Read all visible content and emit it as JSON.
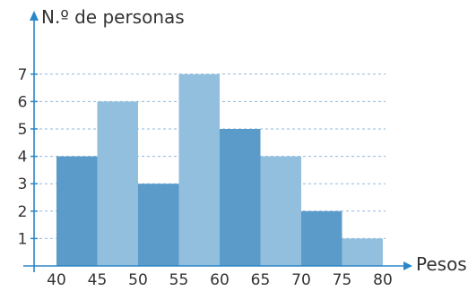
{
  "chart_data": {
    "type": "histogram",
    "title": "",
    "xlabel": "Pesos",
    "ylabel": "N.º de personas",
    "bin_edges": [
      40,
      45,
      50,
      55,
      60,
      65,
      70,
      75,
      80
    ],
    "x_tick_labels": [
      "40",
      "45",
      "50",
      "55",
      "60",
      "65",
      "70",
      "75",
      "80"
    ],
    "values": [
      4,
      6,
      3,
      7,
      5,
      4,
      2,
      1
    ],
    "y_ticks": [
      1,
      2,
      3,
      4,
      5,
      6,
      7
    ],
    "y_tick_labels": [
      "1",
      "2",
      "3",
      "4",
      "5",
      "6",
      "7"
    ],
    "ylim": [
      0,
      8
    ],
    "grid": "dashed horizontal lines at each y tick",
    "legend": "none",
    "colors": {
      "bar_dark": "#5b9bc9",
      "bar_light": "#93bfdf",
      "axis": "#2a86c6",
      "grid": "#8fb8da",
      "text": "#333333"
    }
  }
}
